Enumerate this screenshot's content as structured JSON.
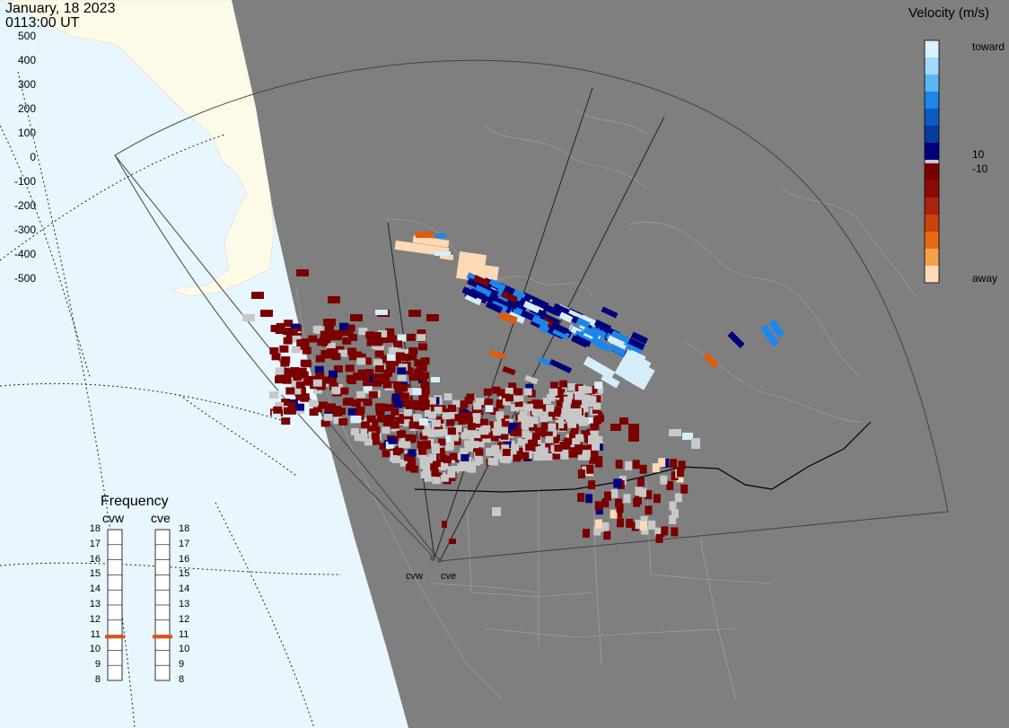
{
  "header": {
    "date": "January, 18 2023",
    "time": "0113:00 UT"
  },
  "colorbar": {
    "title": "Velocity (m/s)",
    "ticks": [
      "500",
      "400",
      "300",
      "200",
      "100",
      "0",
      "-100",
      "-200",
      "-300",
      "-400",
      "-500"
    ],
    "label_toward": "toward",
    "label_away": "away",
    "label_plus10": "10",
    "label_minus10": "-10",
    "colors": {
      "toward_high": "#d6eefc",
      "toward_mid": "#1e86e6",
      "toward_low": "#00007a",
      "ground_scatter": "#c8c8c8",
      "away_low": "#7a0000",
      "away_mid": "#e05a10",
      "away_high": "#fdd9b5"
    }
  },
  "frequency": {
    "title": "Frequency",
    "radars": [
      {
        "name": "cvw",
        "value_mhz": 10.9
      },
      {
        "name": "cve",
        "value_mhz": 10.9
      }
    ],
    "ticks": [
      "18",
      "17",
      "16",
      "15",
      "14",
      "13",
      "12",
      "11",
      "10",
      "9",
      "8"
    ],
    "marker_color": "#e0501c"
  },
  "radars": {
    "cvw": "cvw",
    "cve": "cve"
  },
  "map_colors": {
    "ocean": "#e8f6fe",
    "land_daylight": "#fdfbe8",
    "night": "#7f7f7f",
    "borders": "#a0a0a0"
  }
}
